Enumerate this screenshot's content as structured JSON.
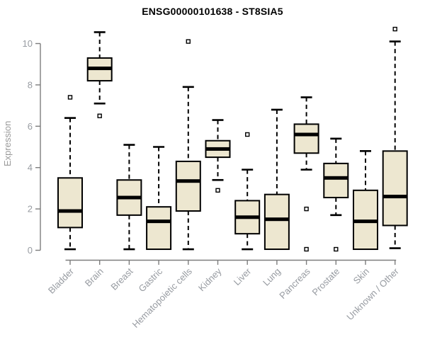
{
  "title": "ENSG00000101638 - ST8SIA5",
  "y_axis": {
    "label": "Expression"
  },
  "chart_data": {
    "type": "boxplot",
    "title": "ENSG00000101638 - ST8SIA5",
    "xlabel": "",
    "ylabel": "Expression",
    "ylim": [
      0,
      10.8
    ],
    "yticks": [
      0,
      2,
      4,
      6,
      8,
      10
    ],
    "grid": false,
    "legend": false,
    "categories": [
      "Bladder",
      "Brain",
      "Breast",
      "Gastric",
      "Hematopoietic cells",
      "Kidney",
      "Liver",
      "Lung",
      "Pancreas",
      "Prostate",
      "Skin",
      "Unknown / Other"
    ],
    "series": [
      {
        "name": "Bladder",
        "min": 0.05,
        "q1": 1.1,
        "median": 1.9,
        "q3": 3.5,
        "max": 6.4,
        "outliers": [
          7.4
        ]
      },
      {
        "name": "Brain",
        "min": 7.1,
        "q1": 8.2,
        "median": 8.8,
        "q3": 9.3,
        "max": 10.55,
        "outliers": [
          6.5
        ]
      },
      {
        "name": "Breast",
        "min": 0.05,
        "q1": 1.7,
        "median": 2.55,
        "q3": 3.4,
        "max": 5.1,
        "outliers": []
      },
      {
        "name": "Gastric",
        "min": 0.05,
        "q1": 0.05,
        "median": 1.4,
        "q3": 2.1,
        "max": 5.0,
        "outliers": []
      },
      {
        "name": "Hematopoietic cells",
        "min": 0.05,
        "q1": 1.9,
        "median": 3.35,
        "q3": 4.3,
        "max": 7.9,
        "outliers": [
          10.1
        ]
      },
      {
        "name": "Kidney",
        "min": 3.4,
        "q1": 4.5,
        "median": 4.9,
        "q3": 5.3,
        "max": 6.3,
        "outliers": [
          2.9
        ]
      },
      {
        "name": "Liver",
        "min": 0.05,
        "q1": 0.8,
        "median": 1.6,
        "q3": 2.4,
        "max": 3.9,
        "outliers": [
          5.6
        ]
      },
      {
        "name": "Lung",
        "min": 0.05,
        "q1": 0.05,
        "median": 1.5,
        "q3": 2.7,
        "max": 6.8,
        "outliers": []
      },
      {
        "name": "Pancreas",
        "min": 3.9,
        "q1": 4.7,
        "median": 5.6,
        "q3": 6.1,
        "max": 7.4,
        "outliers": [
          2.0,
          0.05
        ]
      },
      {
        "name": "Prostate",
        "min": 1.7,
        "q1": 2.55,
        "median": 3.5,
        "q3": 4.2,
        "max": 5.4,
        "outliers": [
          0.05
        ]
      },
      {
        "name": "Skin",
        "min": 0.05,
        "q1": 0.05,
        "median": 1.4,
        "q3": 2.9,
        "max": 4.8,
        "outliers": []
      },
      {
        "name": "Unknown / Other",
        "min": 0.1,
        "q1": 1.2,
        "median": 2.6,
        "q3": 4.8,
        "max": 10.1,
        "outliers": [
          10.7
        ]
      }
    ],
    "colors": {
      "box_fill": "#ede7d0",
      "box_border": "#000000",
      "median": "#000000",
      "whisker": "#000000",
      "axis_line": "#7d7d7d",
      "tick_label": "#979ba1",
      "title": "#000000",
      "background": "#ffffff"
    }
  }
}
